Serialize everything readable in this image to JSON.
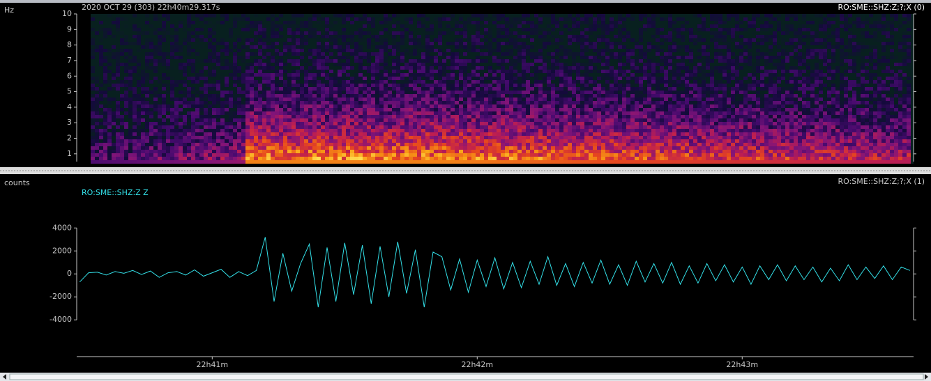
{
  "header": {
    "date": "2020 OCT 29 (303)  22h40m29.317s"
  },
  "spectrogram": {
    "axis_label": "Hz",
    "channel": "RO:SME::SHZ:Z;?;X (0)",
    "ylim": [
      0.5,
      10
    ],
    "yticks": [
      1,
      2,
      3,
      4,
      5,
      6,
      7,
      8,
      9,
      10
    ]
  },
  "chart_data": {
    "type": "line",
    "axis_label": "counts",
    "channel": "RO:SME::SHZ:Z;?;X (1)",
    "series": [
      {
        "name": "RO:SME::SHZ:Z Z",
        "color": "#33e0e8",
        "x": [
          30,
          32,
          34,
          36,
          38,
          40,
          42,
          44,
          46,
          48,
          50,
          52,
          54,
          56,
          58,
          60,
          62,
          64,
          66,
          68,
          70,
          72,
          74,
          76,
          78,
          80,
          82,
          84,
          86,
          88,
          90,
          92,
          94,
          96,
          98,
          100,
          102,
          104,
          106,
          108,
          110,
          112,
          114,
          116,
          118,
          120,
          122,
          124,
          126,
          128,
          130,
          132,
          134,
          136,
          138,
          140,
          142,
          144,
          146,
          148,
          150,
          152,
          154,
          156,
          158,
          160,
          162,
          164,
          166,
          168,
          170,
          172,
          174,
          176,
          178,
          180,
          182,
          184,
          186,
          188,
          190,
          192,
          194,
          196,
          198,
          200,
          202,
          204,
          206,
          208,
          210,
          212,
          214,
          216,
          218
        ],
        "values": [
          -700,
          100,
          150,
          -100,
          200,
          50,
          300,
          -50,
          250,
          -300,
          100,
          200,
          -100,
          350,
          -200,
          100,
          400,
          -300,
          200,
          -150,
          300,
          3200,
          -2400,
          1800,
          -1500,
          900,
          2600,
          -2900,
          2300,
          -2400,
          2700,
          -1800,
          2500,
          -2600,
          2400,
          -2000,
          2800,
          -1700,
          2100,
          -2900,
          1900,
          1500,
          -1400,
          1300,
          -1600,
          1200,
          -1100,
          1400,
          -1300,
          1000,
          -1200,
          1100,
          -900,
          1500,
          -1000,
          900,
          -1100,
          1000,
          -800,
          1200,
          -900,
          800,
          -1000,
          1100,
          -700,
          900,
          -800,
          1000,
          -900,
          700,
          -800,
          900,
          -600,
          800,
          -700,
          600,
          -900,
          700,
          -500,
          800,
          -600,
          700,
          -500,
          600,
          -700,
          500,
          -600,
          800,
          -500,
          600,
          -400,
          700,
          -500,
          600,
          300
        ]
      }
    ],
    "xlim": [
      29.317,
      218.8
    ],
    "xticks": [
      {
        "value": 60,
        "label": "22h41m"
      },
      {
        "value": 120,
        "label": "22h42m"
      },
      {
        "value": 180,
        "label": "22h43m"
      }
    ],
    "ylim": [
      -7200,
      8200
    ],
    "yticks": [
      4000,
      2000,
      0,
      -2000,
      -4000
    ]
  }
}
